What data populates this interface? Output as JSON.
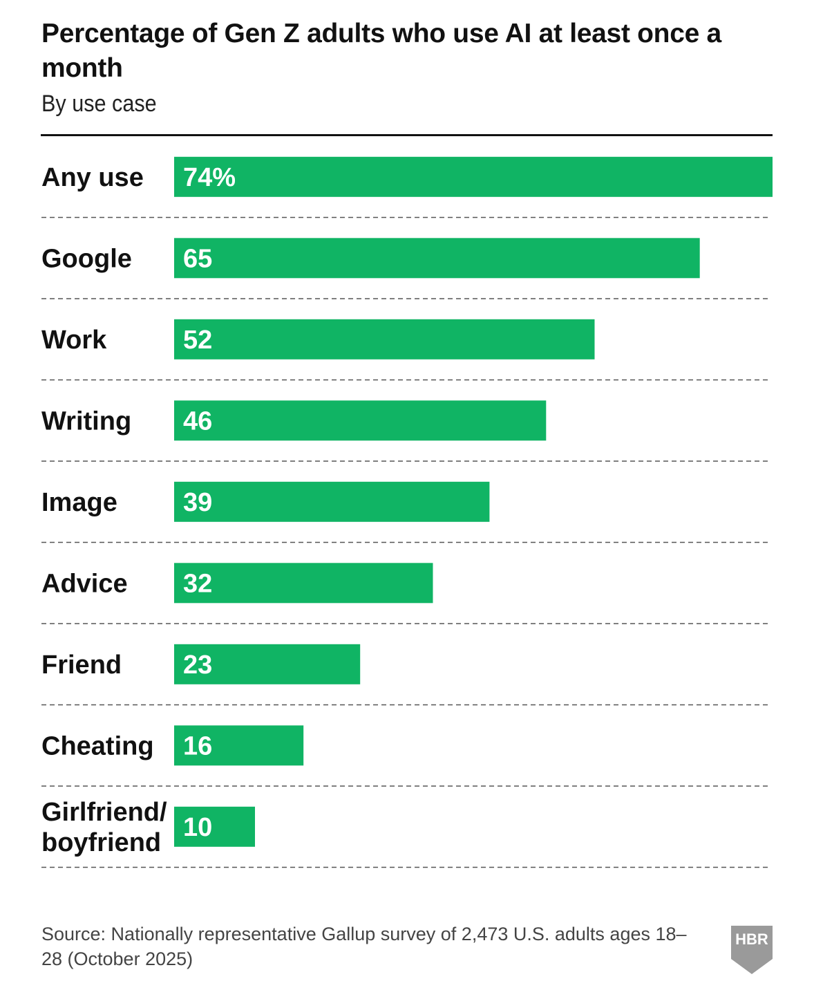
{
  "header": {
    "title": "Percentage of Gen Z adults who use AI at least once a month",
    "subtitle": "By use case"
  },
  "chart_data": {
    "type": "bar",
    "orientation": "horizontal",
    "title": "Percentage of Gen Z adults who use AI at least once a month",
    "subtitle": "By use case",
    "categories": [
      [
        "Any use"
      ],
      [
        "Google"
      ],
      [
        "Work"
      ],
      [
        "Writing"
      ],
      [
        "Image"
      ],
      [
        "Advice"
      ],
      [
        "Friend"
      ],
      [
        "Cheating"
      ],
      [
        "Girlfriend/",
        "boyfriend"
      ]
    ],
    "values": [
      74,
      65,
      52,
      46,
      39,
      32,
      23,
      16,
      10
    ],
    "value_labels": [
      "74%",
      "65",
      "52",
      "46",
      "39",
      "32",
      "23",
      "16",
      "10"
    ],
    "unit": "%",
    "xlim": [
      0,
      74
    ],
    "bar_color": "#10b464",
    "grid": "dashed row separators"
  },
  "footer": {
    "source": "Source: Nationally representative Gallup survey of 2,473 U.S. adults ages 18–28 (October 2025)",
    "logo_text": "HBR",
    "logo_color": "#9a9a9a"
  }
}
